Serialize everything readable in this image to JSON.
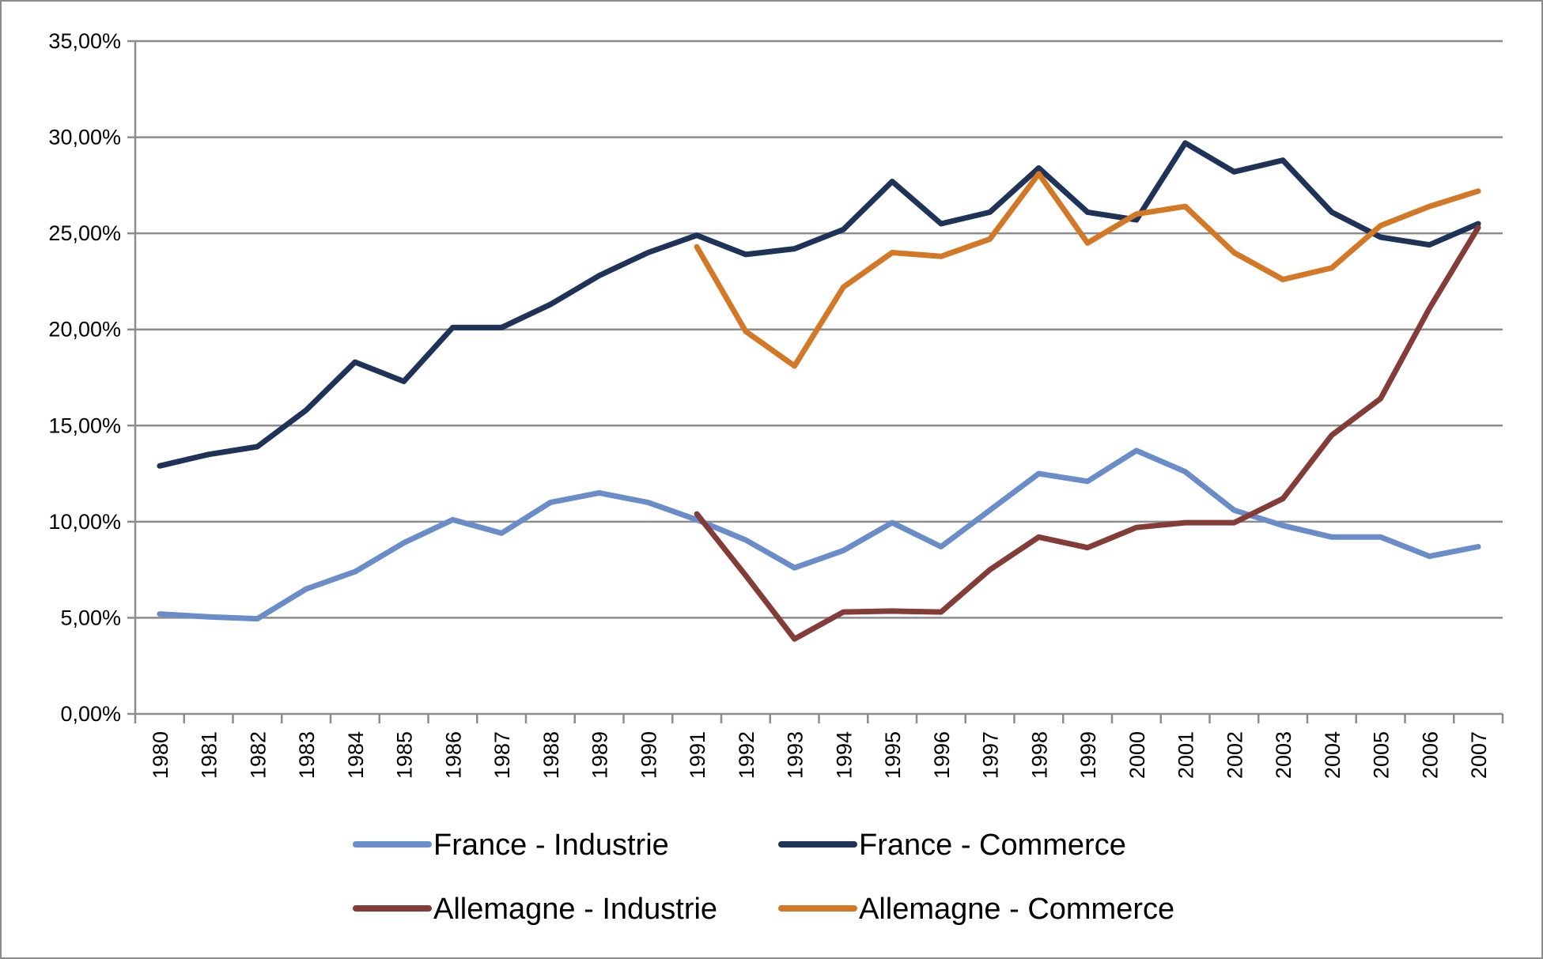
{
  "chart_data": {
    "type": "line",
    "title": "",
    "xlabel": "",
    "ylabel": "",
    "ylim": [
      0,
      0.35
    ],
    "y_tick_labels": [
      "0,00%",
      "5,00%",
      "10,00%",
      "15,00%",
      "20,00%",
      "25,00%",
      "30,00%",
      "35,00%"
    ],
    "y_ticks": [
      0,
      0.05,
      0.1,
      0.15,
      0.2,
      0.25,
      0.3,
      0.35
    ],
    "grid": true,
    "legend_position": "bottom",
    "categories": [
      "1980",
      "1981",
      "1982",
      "1983",
      "1984",
      "1985",
      "1986",
      "1987",
      "1988",
      "1989",
      "1990",
      "1991",
      "1992",
      "1993",
      "1994",
      "1995",
      "1996",
      "1997",
      "1998",
      "1999",
      "2000",
      "2001",
      "2002",
      "2003",
      "2004",
      "2005",
      "2006",
      "2007"
    ],
    "series": [
      {
        "name": "France - Industrie",
        "color": "#6a8cc9",
        "values": [
          0.052,
          0.0505,
          0.0495,
          0.065,
          0.074,
          0.089,
          0.101,
          0.094,
          0.11,
          0.115,
          0.11,
          0.101,
          0.0905,
          0.076,
          0.085,
          0.0995,
          0.087,
          0.106,
          0.125,
          0.121,
          0.137,
          0.126,
          0.106,
          0.098,
          0.092,
          0.092,
          0.082,
          0.087
        ]
      },
      {
        "name": "France - Commerce",
        "color": "#1f3258",
        "values": [
          0.129,
          0.135,
          0.139,
          0.158,
          0.183,
          0.173,
          0.201,
          0.201,
          0.213,
          0.228,
          0.24,
          0.249,
          0.239,
          0.242,
          0.252,
          0.277,
          0.255,
          0.261,
          0.284,
          0.261,
          0.257,
          0.297,
          0.282,
          0.288,
          0.261,
          0.248,
          0.244,
          0.255
        ]
      },
      {
        "name": "Allemagne - Industrie",
        "color": "#843c39",
        "values": [
          null,
          null,
          null,
          null,
          null,
          null,
          null,
          null,
          null,
          null,
          null,
          0.104,
          0.072,
          0.039,
          0.053,
          0.0535,
          0.053,
          0.075,
          0.092,
          0.0865,
          0.097,
          0.0995,
          0.0995,
          0.112,
          0.145,
          0.164,
          0.211,
          0.253
        ]
      },
      {
        "name": "Allemagne - Commerce",
        "color": "#d27826",
        "values": [
          null,
          null,
          null,
          null,
          null,
          null,
          null,
          null,
          null,
          null,
          null,
          0.243,
          0.199,
          0.181,
          0.222,
          0.24,
          0.238,
          0.247,
          0.281,
          0.245,
          0.26,
          0.264,
          0.24,
          0.226,
          0.232,
          0.254,
          0.264,
          0.272
        ]
      }
    ]
  }
}
